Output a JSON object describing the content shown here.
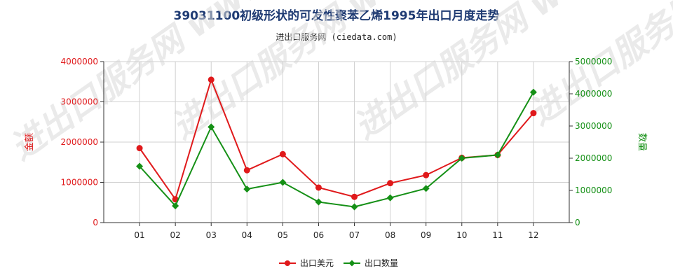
{
  "header": {
    "title": "39031100初级形状的可发性聚苯乙烯1995年出口月度走势",
    "subtitle": "进出口服务网 (ciedata.com)"
  },
  "watermark": "进出口服务网 www.ciedata.com",
  "colors": {
    "series1": "#e0191b",
    "series2": "#159016",
    "grid": "#d0d0d0",
    "axis": "#333333"
  },
  "chart_data": {
    "type": "line",
    "title": "39031100初级形状的可发性聚苯乙烯1995年出口月度走势",
    "categories": [
      "01",
      "02",
      "03",
      "04",
      "05",
      "06",
      "07",
      "08",
      "09",
      "10",
      "11",
      "12"
    ],
    "y_left": {
      "label": "金额",
      "ticks": [
        "0",
        "1000000",
        "2000000",
        "3000000",
        "4000000"
      ],
      "range": [
        0,
        4000000
      ]
    },
    "y_right": {
      "label": "数量",
      "ticks": [
        "0",
        "1000000",
        "2000000",
        "3000000",
        "4000000",
        "5000000"
      ],
      "range": [
        0,
        5000000
      ]
    },
    "series": [
      {
        "name": "出口美元",
        "axis": "left",
        "marker": "circle",
        "values": [
          1850000,
          580000,
          3550000,
          1300000,
          1700000,
          870000,
          640000,
          980000,
          1180000,
          1610000,
          1680000,
          2720000
        ]
      },
      {
        "name": "出口数量",
        "axis": "right",
        "marker": "diamond",
        "values": [
          1750000,
          520000,
          2970000,
          1040000,
          1250000,
          640000,
          490000,
          770000,
          1060000,
          2000000,
          2100000,
          4050000
        ]
      }
    ],
    "grid": true,
    "legend": "bottom-center"
  }
}
